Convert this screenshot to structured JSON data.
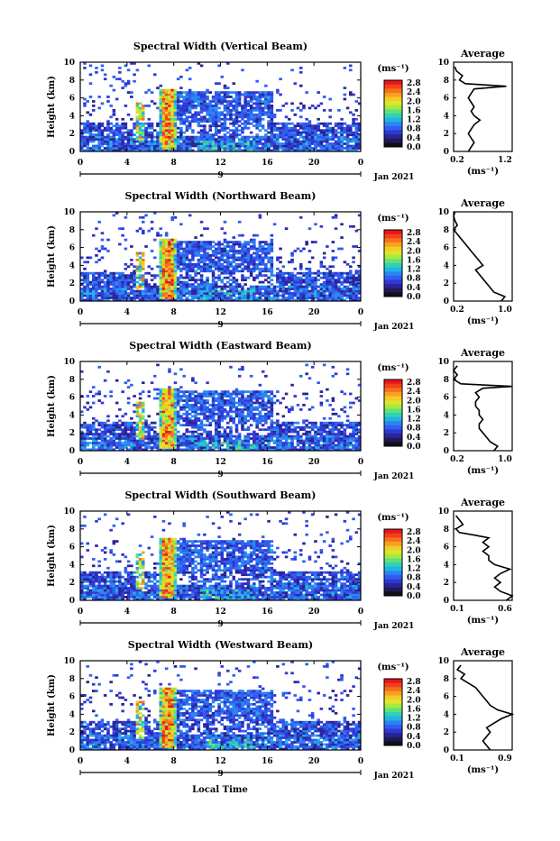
{
  "x_axis_label": "Local Time",
  "colorbar": {
    "unit_label": "(ms⁻¹)",
    "tick_labels": [
      "2.8",
      "2.4",
      "2.0",
      "1.6",
      "1.2",
      "0.8",
      "0.4",
      "0.0"
    ],
    "colors": [
      "#e8141b",
      "#f2411a",
      "#f86f1c",
      "#f7a11f",
      "#f3cb25",
      "#dbe62d",
      "#a6ea3f",
      "#63e07a",
      "#2fd2b3",
      "#20b5e3",
      "#2a86ef",
      "#2f5ef0",
      "#3137d3",
      "#2b2396",
      "#1f1a55",
      "#101018"
    ]
  },
  "chart_data": [
    {
      "type": "heatmap",
      "title": "Spectral Width (Vertical Beam)",
      "xlabel": "",
      "ylabel": "Height (km)",
      "xlim": [
        0,
        24
      ],
      "ylim": [
        0,
        10
      ],
      "x_ticks": [
        "0",
        "4",
        "8",
        "12",
        "16",
        "20",
        "0"
      ],
      "y_ticks": [
        "0",
        "2",
        "4",
        "6",
        "8",
        "10"
      ],
      "date_marker": "9",
      "date_label": "Jan 2021",
      "average": {
        "title": "Average",
        "xlabel": "(ms⁻¹)",
        "x_ticks": [
          "0.2",
          "1.2"
        ],
        "xlim": [
          0.2,
          1.2
        ],
        "profile": [
          [
            0,
            0.45
          ],
          [
            0.5,
            0.5
          ],
          [
            1,
            0.55
          ],
          [
            1.5,
            0.5
          ],
          [
            2,
            0.45
          ],
          [
            2.5,
            0.5
          ],
          [
            3,
            0.55
          ],
          [
            3.5,
            0.65
          ],
          [
            4,
            0.55
          ],
          [
            4.5,
            0.5
          ],
          [
            5,
            0.55
          ],
          [
            5.5,
            0.5
          ],
          [
            6,
            0.45
          ],
          [
            6.5,
            0.5
          ],
          [
            7,
            0.55
          ],
          [
            7.3,
            1.1
          ],
          [
            7.6,
            0.4
          ],
          [
            8,
            0.3
          ],
          [
            8.5,
            0.35
          ],
          [
            9,
            0.25
          ],
          [
            9.5,
            0.22
          ]
        ]
      }
    },
    {
      "type": "heatmap",
      "title": "Spectral Width (Northward Beam)",
      "xlabel": "",
      "ylabel": "Height (km)",
      "xlim": [
        0,
        24
      ],
      "ylim": [
        0,
        10
      ],
      "x_ticks": [
        "0",
        "4",
        "8",
        "12",
        "16",
        "20",
        "0"
      ],
      "y_ticks": [
        "0",
        "2",
        "4",
        "6",
        "8",
        "10"
      ],
      "date_marker": "9",
      "date_label": "Jan 2021",
      "average": {
        "title": "Average",
        "xlabel": "(ms⁻¹)",
        "x_ticks": [
          "0.2",
          "1.0"
        ],
        "xlim": [
          0.2,
          1.0
        ],
        "profile": [
          [
            0,
            0.85
          ],
          [
            0.5,
            0.9
          ],
          [
            1,
            0.75
          ],
          [
            1.5,
            0.7
          ],
          [
            2,
            0.65
          ],
          [
            2.5,
            0.6
          ],
          [
            3,
            0.55
          ],
          [
            3.5,
            0.5
          ],
          [
            4,
            0.6
          ],
          [
            4.5,
            0.55
          ],
          [
            5,
            0.5
          ],
          [
            5.5,
            0.45
          ],
          [
            6,
            0.4
          ],
          [
            6.5,
            0.35
          ],
          [
            7,
            0.3
          ],
          [
            7.5,
            0.25
          ],
          [
            8,
            0.2
          ],
          [
            8.5,
            0.25
          ],
          [
            9,
            0.22
          ],
          [
            9.5,
            0.2
          ],
          [
            10,
            0.22
          ]
        ]
      }
    },
    {
      "type": "heatmap",
      "title": "Spectral Width (Eastward Beam)",
      "xlabel": "",
      "ylabel": "Height (km)",
      "xlim": [
        0,
        24
      ],
      "ylim": [
        0,
        10
      ],
      "x_ticks": [
        "0",
        "4",
        "8",
        "12",
        "16",
        "20",
        "0"
      ],
      "y_ticks": [
        "0",
        "2",
        "4",
        "6",
        "8",
        "10"
      ],
      "date_marker": "9",
      "date_label": "Jan 2021",
      "average": {
        "title": "Average",
        "xlabel": "(ms⁻¹)",
        "x_ticks": [
          "0.2",
          "1.0"
        ],
        "xlim": [
          0.2,
          1.0
        ],
        "profile": [
          [
            0,
            0.75
          ],
          [
            0.5,
            0.8
          ],
          [
            1,
            0.7
          ],
          [
            1.5,
            0.65
          ],
          [
            2,
            0.6
          ],
          [
            2.5,
            0.55
          ],
          [
            3,
            0.55
          ],
          [
            3.5,
            0.6
          ],
          [
            4,
            0.55
          ],
          [
            4.5,
            0.55
          ],
          [
            5,
            0.5
          ],
          [
            5.5,
            0.5
          ],
          [
            6,
            0.55
          ],
          [
            6.5,
            0.5
          ],
          [
            7,
            0.6
          ],
          [
            7.2,
            1.0
          ],
          [
            7.5,
            0.3
          ],
          [
            8,
            0.2
          ],
          [
            8.5,
            0.25
          ],
          [
            9,
            0.2
          ],
          [
            9.5,
            0.25
          ]
        ]
      }
    },
    {
      "type": "heatmap",
      "title": "Spectral Width (Southward Beam)",
      "xlabel": "",
      "ylabel": "Height (km)",
      "xlim": [
        0,
        24
      ],
      "ylim": [
        0,
        10
      ],
      "x_ticks": [
        "0",
        "4",
        "8",
        "12",
        "16",
        "20",
        "0"
      ],
      "y_ticks": [
        "0",
        "2",
        "4",
        "6",
        "8",
        "10"
      ],
      "date_marker": "9",
      "date_label": "Jan 2021",
      "average": {
        "title": "Average",
        "xlabel": "(ms⁻¹)",
        "x_ticks": [
          "0.1",
          "0.6"
        ],
        "xlim": [
          0.1,
          0.6
        ],
        "profile": [
          [
            0,
            0.55
          ],
          [
            0.5,
            0.6
          ],
          [
            1,
            0.5
          ],
          [
            1.5,
            0.45
          ],
          [
            2,
            0.5
          ],
          [
            2.5,
            0.45
          ],
          [
            3,
            0.5
          ],
          [
            3.5,
            0.58
          ],
          [
            4,
            0.45
          ],
          [
            4.5,
            0.4
          ],
          [
            5,
            0.4
          ],
          [
            5.5,
            0.35
          ],
          [
            6,
            0.4
          ],
          [
            6.5,
            0.35
          ],
          [
            7,
            0.4
          ],
          [
            7.3,
            0.28
          ],
          [
            7.6,
            0.15
          ],
          [
            8,
            0.12
          ],
          [
            8.5,
            0.18
          ],
          [
            9,
            0.15
          ],
          [
            9.5,
            0.12
          ]
        ]
      }
    },
    {
      "type": "heatmap",
      "title": "Spectral Width (Westward Beam)",
      "xlabel": "Local Time",
      "ylabel": "Height (km)",
      "xlim": [
        0,
        24
      ],
      "ylim": [
        0,
        10
      ],
      "x_ticks": [
        "0",
        "4",
        "8",
        "12",
        "16",
        "20",
        "0"
      ],
      "y_ticks": [
        "0",
        "2",
        "4",
        "6",
        "8",
        "10"
      ],
      "date_marker": "9",
      "date_label": "Jan 2021",
      "average": {
        "title": "Average",
        "xlabel": "(ms⁻¹)",
        "x_ticks": [
          "0.1",
          "0.9"
        ],
        "xlim": [
          0.1,
          0.9
        ],
        "profile": [
          [
            0,
            0.6
          ],
          [
            0.5,
            0.55
          ],
          [
            1,
            0.5
          ],
          [
            1.5,
            0.55
          ],
          [
            2,
            0.6
          ],
          [
            2.5,
            0.55
          ],
          [
            3,
            0.65
          ],
          [
            3.5,
            0.75
          ],
          [
            4,
            0.9
          ],
          [
            4.5,
            0.7
          ],
          [
            5,
            0.6
          ],
          [
            5.5,
            0.55
          ],
          [
            6,
            0.5
          ],
          [
            6.5,
            0.45
          ],
          [
            7,
            0.4
          ],
          [
            7.5,
            0.3
          ],
          [
            8,
            0.2
          ],
          [
            8.5,
            0.25
          ],
          [
            9,
            0.15
          ],
          [
            9.5,
            0.2
          ]
        ]
      }
    }
  ]
}
